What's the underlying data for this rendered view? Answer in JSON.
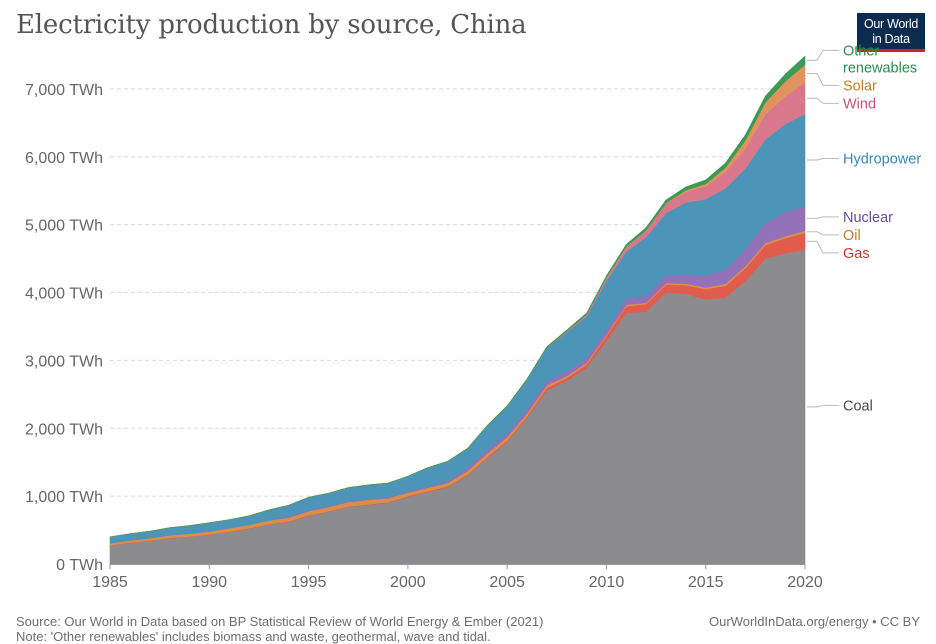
{
  "header": {
    "title": "Electricity production by source, China",
    "logo_line1": "Our World",
    "logo_line2": "in Data"
  },
  "footer": {
    "source": "Source: Our World in Data based on BP Statistical Review of World Energy & Ember (2021)",
    "note": "Note: 'Other renewables' includes biomass and waste, geothermal, wave and tidal.",
    "link": "OurWorldInData.org/energy • CC BY"
  },
  "chart_data": {
    "type": "area",
    "stacked": true,
    "x": [
      1985,
      1986,
      1987,
      1988,
      1989,
      1990,
      1991,
      1992,
      1993,
      1994,
      1995,
      1996,
      1997,
      1998,
      1999,
      2000,
      2001,
      2002,
      2003,
      2004,
      2005,
      2006,
      2007,
      2008,
      2009,
      2010,
      2011,
      2012,
      2013,
      2014,
      2015,
      2016,
      2017,
      2018,
      2019,
      2020
    ],
    "xlim": [
      1985,
      2020
    ],
    "ylim": [
      0,
      7500
    ],
    "y_ticks": [
      0,
      1000,
      2000,
      3000,
      4000,
      5000,
      6000,
      7000
    ],
    "y_tick_labels": [
      "0 TWh",
      "1,000 TWh",
      "2,000 TWh",
      "3,000 TWh",
      "4,000 TWh",
      "5,000 TWh",
      "6,000 TWh",
      "7,000 TWh"
    ],
    "x_ticks": [
      1985,
      1990,
      1995,
      2000,
      2005,
      2010,
      2015,
      2020
    ],
    "x_tick_labels": [
      "1985",
      "1990",
      "1995",
      "2000",
      "2005",
      "2010",
      "2015",
      "2020"
    ],
    "grid": "horizontal dashed",
    "legend_position": "right, inline labels",
    "series": [
      {
        "name": "Coal",
        "color": "#8c8c8f",
        "values": [
          270,
          310,
          340,
          380,
          400,
          430,
          470,
          520,
          580,
          620,
          710,
          770,
          840,
          870,
          900,
          990,
          1060,
          1130,
          1300,
          1560,
          1800,
          2150,
          2560,
          2700,
          2890,
          3290,
          3700,
          3720,
          4000,
          3980,
          3900,
          3930,
          4170,
          4500,
          4580,
          4630
        ]
      },
      {
        "name": "Gas",
        "color": "#e15c4d",
        "values": [
          6,
          6,
          6,
          6,
          6,
          6,
          7,
          7,
          7,
          8,
          8,
          8,
          8,
          9,
          10,
          11,
          12,
          14,
          15,
          16,
          20,
          25,
          35,
          40,
          48,
          70,
          100,
          110,
          120,
          130,
          150,
          170,
          190,
          200,
          220,
          250
        ]
      },
      {
        "name": "Oil",
        "color": "#d98f4a",
        "values": [
          30,
          33,
          35,
          38,
          40,
          45,
          50,
          50,
          55,
          55,
          60,
          60,
          65,
          65,
          60,
          50,
          50,
          50,
          55,
          55,
          50,
          45,
          40,
          30,
          25,
          20,
          20,
          20,
          20,
          20,
          25,
          30,
          30,
          30,
          30,
          30
        ]
      },
      {
        "name": "Nuclear",
        "color": "#9370b8",
        "values": [
          0,
          0,
          0,
          0,
          0,
          0,
          0,
          0,
          2,
          14,
          13,
          14,
          14,
          14,
          15,
          17,
          17,
          25,
          43,
          50,
          53,
          55,
          62,
          68,
          70,
          74,
          87,
          97,
          112,
          133,
          171,
          213,
          248,
          295,
          349,
          366
        ]
      },
      {
        "name": "Hydropower",
        "color": "#4d94b9",
        "values": [
          92,
          95,
          100,
          109,
          118,
          126,
          125,
          131,
          151,
          167,
          190,
          188,
          196,
          205,
          204,
          222,
          277,
          288,
          283,
          353,
          397,
          436,
          486,
          580,
          616,
          721,
          699,
          872,
          920,
          1064,
          1130,
          1193,
          1194,
          1232,
          1302,
          1355
        ]
      },
      {
        "name": "Wind",
        "color": "#d9788c",
        "values": [
          0,
          0,
          0,
          0,
          0,
          0,
          0,
          0,
          0,
          0,
          0,
          0,
          0,
          0,
          0,
          1,
          1,
          1,
          1,
          1,
          2,
          4,
          6,
          13,
          27,
          45,
          70,
          96,
          138,
          156,
          186,
          241,
          295,
          366,
          406,
          466
        ]
      },
      {
        "name": "Solar",
        "color": "#e0935f",
        "values": [
          0,
          0,
          0,
          0,
          0,
          0,
          0,
          0,
          0,
          0,
          0,
          0,
          0,
          0,
          0,
          0,
          0,
          0,
          0,
          0,
          0,
          0,
          0,
          0,
          0,
          1,
          3,
          4,
          9,
          24,
          39,
          66,
          117,
          178,
          224,
          261
        ]
      },
      {
        "name": "Other renewables",
        "color": "#3c9a55",
        "values": [
          2,
          2,
          2,
          2,
          2,
          2,
          2,
          3,
          3,
          3,
          3,
          3,
          3,
          4,
          4,
          4,
          5,
          6,
          6,
          8,
          10,
          12,
          14,
          16,
          20,
          25,
          30,
          38,
          45,
          50,
          58,
          66,
          80,
          92,
          105,
          125
        ]
      }
    ],
    "labels": [
      {
        "series": "Other renewables",
        "lines": [
          "Other",
          "renewables"
        ],
        "color": "#2d8c4e"
      },
      {
        "series": "Solar",
        "lines": [
          "Solar"
        ],
        "color": "#c97c2e"
      },
      {
        "series": "Wind",
        "lines": [
          "Wind"
        ],
        "color": "#c8546e"
      },
      {
        "series": "Hydropower",
        "lines": [
          "Hydropower"
        ],
        "color": "#3a86b4"
      },
      {
        "series": "Nuclear",
        "lines": [
          "Nuclear"
        ],
        "color": "#6a4b9a"
      },
      {
        "series": "Oil",
        "lines": [
          "Oil"
        ],
        "color": "#c0782e"
      },
      {
        "series": "Gas",
        "lines": [
          "Gas"
        ],
        "color": "#c8352b"
      },
      {
        "series": "Coal",
        "lines": [
          "Coal"
        ],
        "color": "#4a4a4a"
      }
    ]
  }
}
